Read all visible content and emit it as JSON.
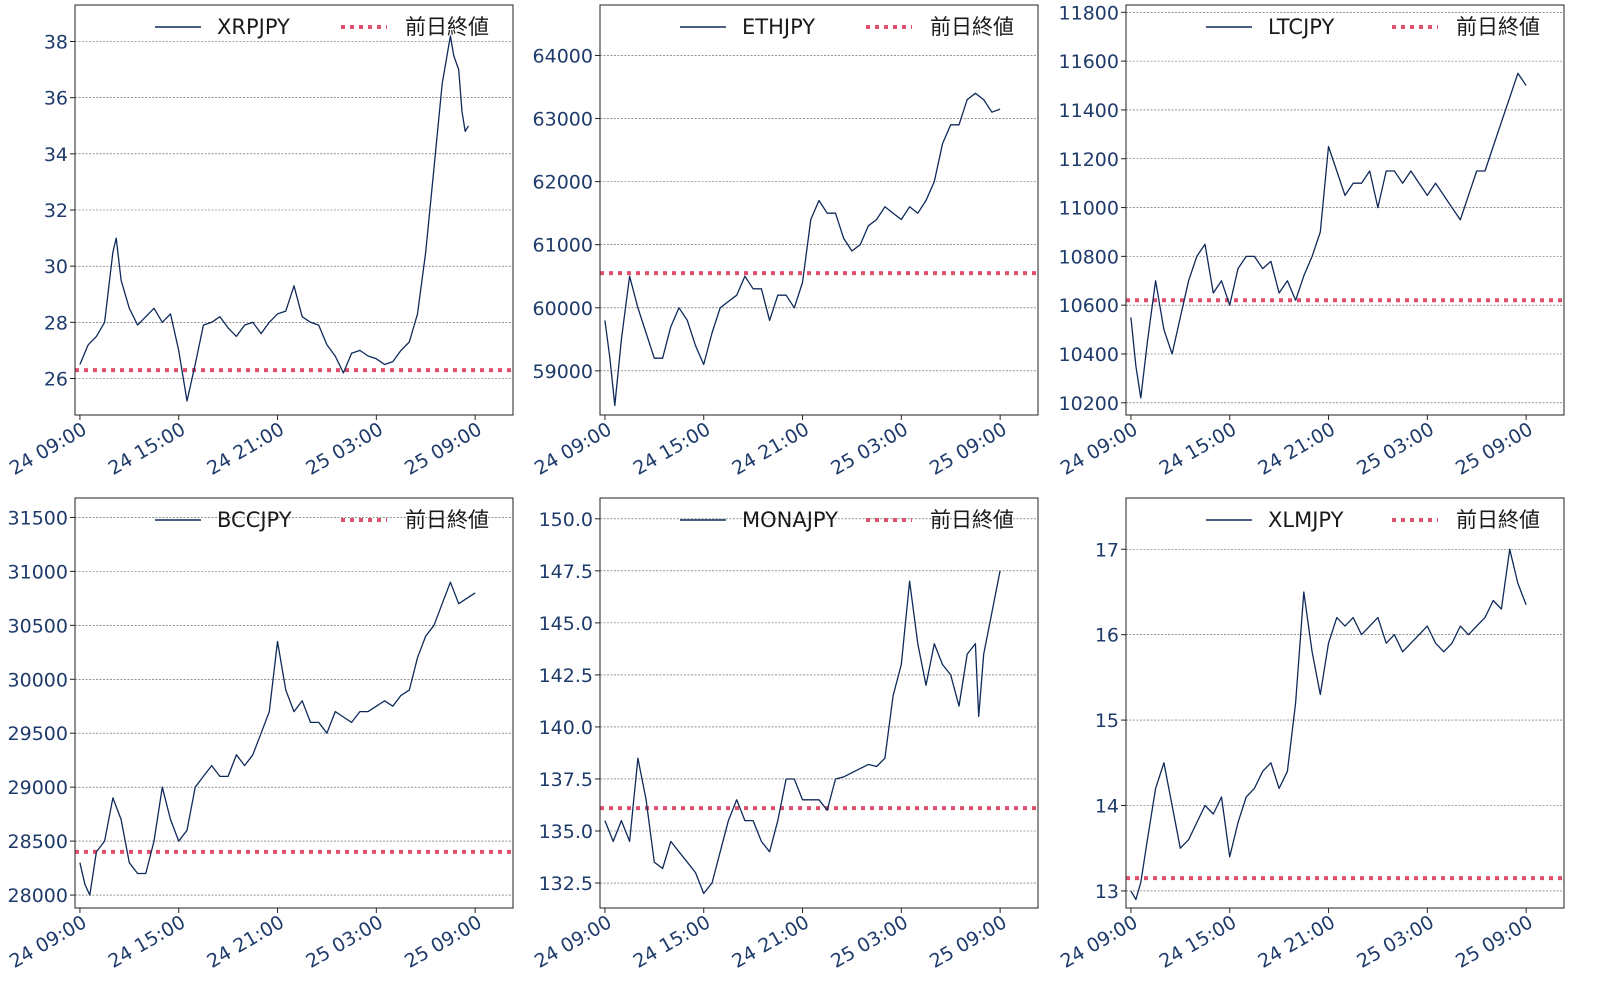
{
  "colors": {
    "series": "#0f2a5a",
    "reference": "#e0506e",
    "ticks": "#1f3b6b"
  },
  "chart_data": [
    {
      "type": "line",
      "symbol": "XRPJPY",
      "legend": [
        "XRPJPY",
        "前日終値"
      ],
      "x_range": [
        -0.3,
        26.3
      ],
      "xticks": [
        0,
        6,
        12,
        18,
        24
      ],
      "xtick_labels": [
        "24 09:00",
        "24 15:00",
        "24 21:00",
        "25 03:00",
        "25 09:00"
      ],
      "ylim": [
        24.7,
        39.3
      ],
      "yticks": [
        26,
        28,
        30,
        32,
        34,
        36,
        38
      ],
      "ytick_labels": [
        "26",
        "28",
        "30",
        "32",
        "34",
        "36",
        "38"
      ],
      "reference": 26.3,
      "series": {
        "x": [
          0,
          0.5,
          1,
          1.5,
          2,
          2.2,
          2.5,
          3,
          3.5,
          4,
          4.5,
          5,
          5.5,
          6,
          6.5,
          7,
          7.5,
          8,
          8.5,
          9,
          9.5,
          10,
          10.5,
          11,
          11.5,
          12,
          12.5,
          13,
          13.5,
          14,
          14.5,
          15,
          15.5,
          16,
          16.5,
          17,
          17.5,
          18,
          18.5,
          19,
          19.5,
          20,
          20.5,
          21,
          21.5,
          22,
          22.5,
          22.7,
          23,
          23.2,
          23.4,
          23.6
        ],
        "y": [
          26.5,
          27.2,
          27.5,
          28.0,
          30.5,
          31.0,
          29.5,
          28.5,
          27.9,
          28.2,
          28.5,
          28.0,
          28.3,
          27.0,
          25.2,
          26.5,
          27.9,
          28.0,
          28.2,
          27.8,
          27.5,
          27.9,
          28.0,
          27.6,
          28.0,
          28.3,
          28.4,
          29.3,
          28.2,
          28.0,
          27.9,
          27.2,
          26.8,
          26.2,
          26.9,
          27.0,
          26.8,
          26.7,
          26.5,
          26.6,
          27.0,
          27.3,
          28.3,
          30.5,
          33.5,
          36.5,
          38.2,
          37.5,
          37.0,
          35.5,
          34.8,
          35.0
        ]
      }
    },
    {
      "type": "line",
      "symbol": "ETHJPY",
      "legend": [
        "ETHJPY",
        "前日終値"
      ],
      "x_range": [
        -0.3,
        26.3
      ],
      "xticks": [
        0,
        6,
        12,
        18,
        24
      ],
      "xtick_labels": [
        "24 09:00",
        "24 15:00",
        "24 21:00",
        "25 03:00",
        "25 09:00"
      ],
      "ylim": [
        58300,
        64800
      ],
      "yticks": [
        59000,
        60000,
        61000,
        62000,
        63000,
        64000
      ],
      "ytick_labels": [
        "59000",
        "60000",
        "61000",
        "62000",
        "63000",
        "64000"
      ],
      "reference": 60550,
      "series": {
        "x": [
          0,
          0.3,
          0.6,
          1,
          1.5,
          2,
          2.5,
          3,
          3.5,
          4,
          4.5,
          5,
          5.5,
          6,
          6.5,
          7,
          7.5,
          8,
          8.5,
          9,
          9.5,
          10,
          10.5,
          11,
          11.5,
          12,
          12.5,
          13,
          13.5,
          14,
          14.5,
          15,
          15.5,
          16,
          16.5,
          17,
          17.5,
          18,
          18.5,
          19,
          19.5,
          20,
          20.5,
          21,
          21.5,
          22,
          22.5,
          23,
          23.5,
          24
        ],
        "y": [
          59800,
          59200,
          58450,
          59500,
          60500,
          60000,
          59600,
          59200,
          59200,
          59700,
          60000,
          59800,
          59400,
          59100,
          59600,
          60000,
          60100,
          60200,
          60500,
          60300,
          60300,
          59800,
          60200,
          60200,
          60000,
          60400,
          61400,
          61700,
          61500,
          61500,
          61100,
          60900,
          61000,
          61300,
          61400,
          61600,
          61500,
          61400,
          61600,
          61500,
          61700,
          62000,
          62600,
          62900,
          62900,
          63300,
          63400,
          63300,
          63100,
          63150
        ]
      }
    },
    {
      "type": "line",
      "symbol": "LTCJPY",
      "legend": [
        "LTCJPY",
        "前日終値"
      ],
      "x_range": [
        -0.3,
        26.3
      ],
      "xticks": [
        0,
        6,
        12,
        18,
        24
      ],
      "xtick_labels": [
        "24 09:00",
        "24 15:00",
        "24 21:00",
        "25 03:00",
        "25 09:00"
      ],
      "ylim": [
        10150,
        11830
      ],
      "yticks": [
        10200,
        10400,
        10600,
        10800,
        11000,
        11200,
        11400,
        11600,
        11800
      ],
      "ytick_labels": [
        "10200",
        "10400",
        "10600",
        "10800",
        "11000",
        "11200",
        "11400",
        "11600",
        "11800"
      ],
      "reference": 10620,
      "series": {
        "x": [
          0,
          0.3,
          0.6,
          1,
          1.5,
          2,
          2.5,
          3,
          3.5,
          4,
          4.5,
          5,
          5.5,
          6,
          6.5,
          7,
          7.5,
          8,
          8.5,
          9,
          9.5,
          10,
          10.5,
          11,
          11.5,
          12,
          12.5,
          13,
          13.5,
          14,
          14.5,
          15,
          15.5,
          16,
          16.5,
          17,
          17.5,
          18,
          18.5,
          19,
          19.5,
          20,
          20.5,
          21,
          21.5,
          22,
          22.5,
          23,
          23.5,
          24
        ],
        "y": [
          10550,
          10350,
          10220,
          10450,
          10700,
          10500,
          10400,
          10550,
          10700,
          10800,
          10850,
          10650,
          10700,
          10600,
          10750,
          10800,
          10800,
          10750,
          10780,
          10650,
          10700,
          10620,
          10720,
          10800,
          10900,
          11250,
          11150,
          11050,
          11100,
          11100,
          11150,
          11000,
          11150,
          11150,
          11100,
          11150,
          11100,
          11050,
          11100,
          11050,
          11000,
          10950,
          11050,
          11150,
          11150,
          11250,
          11350,
          11450,
          11550,
          11500
        ]
      }
    },
    {
      "type": "line",
      "symbol": "BCCJPY",
      "legend": [
        "BCCJPY",
        "前日終値"
      ],
      "x_range": [
        -0.3,
        26.3
      ],
      "xticks": [
        0,
        6,
        12,
        18,
        24
      ],
      "xtick_labels": [
        "24 09:00",
        "24 15:00",
        "24 21:00",
        "25 03:00",
        "25 09:00"
      ],
      "ylim": [
        27880,
        31680
      ],
      "yticks": [
        28000,
        28500,
        29000,
        29500,
        30000,
        30500,
        31000,
        31500
      ],
      "ytick_labels": [
        "28000",
        "28500",
        "29000",
        "29500",
        "30000",
        "30500",
        "31000",
        "31500"
      ],
      "reference": 28400,
      "series": {
        "x": [
          0,
          0.3,
          0.6,
          1,
          1.5,
          2,
          2.5,
          3,
          3.5,
          4,
          4.5,
          5,
          5.5,
          6,
          6.5,
          7,
          7.5,
          8,
          8.5,
          9,
          9.5,
          10,
          10.5,
          11,
          11.5,
          12,
          12.5,
          13,
          13.5,
          14,
          14.5,
          15,
          15.5,
          16,
          16.5,
          17,
          17.5,
          18,
          18.5,
          19,
          19.5,
          20,
          20.5,
          21,
          21.5,
          22,
          22.5,
          23,
          23.5,
          24
        ],
        "y": [
          28300,
          28100,
          28000,
          28400,
          28500,
          28900,
          28700,
          28300,
          28200,
          28200,
          28500,
          29000,
          28700,
          28500,
          28600,
          29000,
          29100,
          29200,
          29100,
          29100,
          29300,
          29200,
          29300,
          29500,
          29700,
          30350,
          29900,
          29700,
          29800,
          29600,
          29600,
          29500,
          29700,
          29650,
          29600,
          29700,
          29700,
          29750,
          29800,
          29750,
          29850,
          29900,
          30200,
          30400,
          30500,
          30700,
          30900,
          30700,
          30750,
          30800
        ]
      }
    },
    {
      "type": "line",
      "symbol": "MONAJPY",
      "legend": [
        "MONAJPY",
        "前日終値"
      ],
      "x_range": [
        -0.3,
        26.3
      ],
      "xticks": [
        0,
        6,
        12,
        18,
        24
      ],
      "xtick_labels": [
        "24 09:00",
        "24 15:00",
        "24 21:00",
        "25 03:00",
        "25 09:00"
      ],
      "ylim": [
        131.3,
        151.0
      ],
      "yticks": [
        132.5,
        135.0,
        137.5,
        140.0,
        142.5,
        145.0,
        147.5,
        150.0
      ],
      "ytick_labels": [
        "132.5",
        "135.0",
        "137.5",
        "140.0",
        "142.5",
        "145.0",
        "147.5",
        "150.0"
      ],
      "reference": 136.1,
      "series": {
        "x": [
          0,
          0.5,
          1,
          1.5,
          2,
          2.5,
          3,
          3.5,
          4,
          4.5,
          5,
          5.5,
          6,
          6.5,
          7,
          7.5,
          8,
          8.5,
          9,
          9.5,
          10,
          10.5,
          11,
          11.5,
          12,
          12.5,
          13,
          13.5,
          14,
          14.5,
          15,
          15.5,
          16,
          16.5,
          17,
          17.5,
          18,
          18.5,
          19,
          19.5,
          20,
          20.5,
          21,
          21.5,
          22,
          22.5,
          22.7,
          23,
          23.5,
          24
        ],
        "y": [
          135.5,
          134.5,
          135.5,
          134.5,
          138.5,
          136.5,
          133.5,
          133.2,
          134.5,
          134.0,
          133.5,
          133.0,
          132.0,
          132.5,
          134.0,
          135.5,
          136.5,
          135.5,
          135.5,
          134.5,
          134.0,
          135.5,
          137.5,
          137.5,
          136.5,
          136.5,
          136.5,
          136.0,
          137.5,
          137.6,
          137.8,
          138.0,
          138.2,
          138.1,
          138.5,
          141.5,
          143.0,
          147.0,
          144.0,
          142.0,
          144.0,
          143.0,
          142.5,
          141.0,
          143.5,
          144.0,
          140.5,
          143.5,
          145.5,
          147.5
        ]
      }
    },
    {
      "type": "line",
      "symbol": "XLMJPY",
      "legend": [
        "XLMJPY",
        "前日終値"
      ],
      "x_range": [
        -0.3,
        26.3
      ],
      "xticks": [
        0,
        6,
        12,
        18,
        24
      ],
      "xtick_labels": [
        "24 09:00",
        "24 15:00",
        "24 21:00",
        "25 03:00",
        "25 09:00"
      ],
      "ylim": [
        12.8,
        17.6
      ],
      "yticks": [
        13,
        14,
        15,
        16,
        17
      ],
      "ytick_labels": [
        "13",
        "14",
        "15",
        "16",
        "17"
      ],
      "reference": 13.15,
      "series": {
        "x": [
          0,
          0.3,
          0.6,
          1,
          1.5,
          2,
          2.5,
          3,
          3.5,
          4,
          4.5,
          5,
          5.5,
          6,
          6.5,
          7,
          7.5,
          8,
          8.5,
          9,
          9.5,
          10,
          10.5,
          11,
          11.5,
          12,
          12.5,
          13,
          13.5,
          14,
          14.5,
          15,
          15.5,
          16,
          16.5,
          17,
          17.5,
          18,
          18.5,
          19,
          19.5,
          20,
          20.5,
          21,
          21.5,
          22,
          22.5,
          23,
          23.5,
          24
        ],
        "y": [
          13.0,
          12.9,
          13.1,
          13.6,
          14.2,
          14.5,
          14.0,
          13.5,
          13.6,
          13.8,
          14.0,
          13.9,
          14.1,
          13.4,
          13.8,
          14.1,
          14.2,
          14.4,
          14.5,
          14.2,
          14.4,
          15.2,
          16.5,
          15.8,
          15.3,
          15.9,
          16.2,
          16.1,
          16.2,
          16.0,
          16.1,
          16.2,
          15.9,
          16.0,
          15.8,
          15.9,
          16.0,
          16.1,
          15.9,
          15.8,
          15.9,
          16.1,
          16.0,
          16.1,
          16.2,
          16.4,
          16.3,
          17.0,
          16.6,
          16.35
        ]
      }
    }
  ]
}
